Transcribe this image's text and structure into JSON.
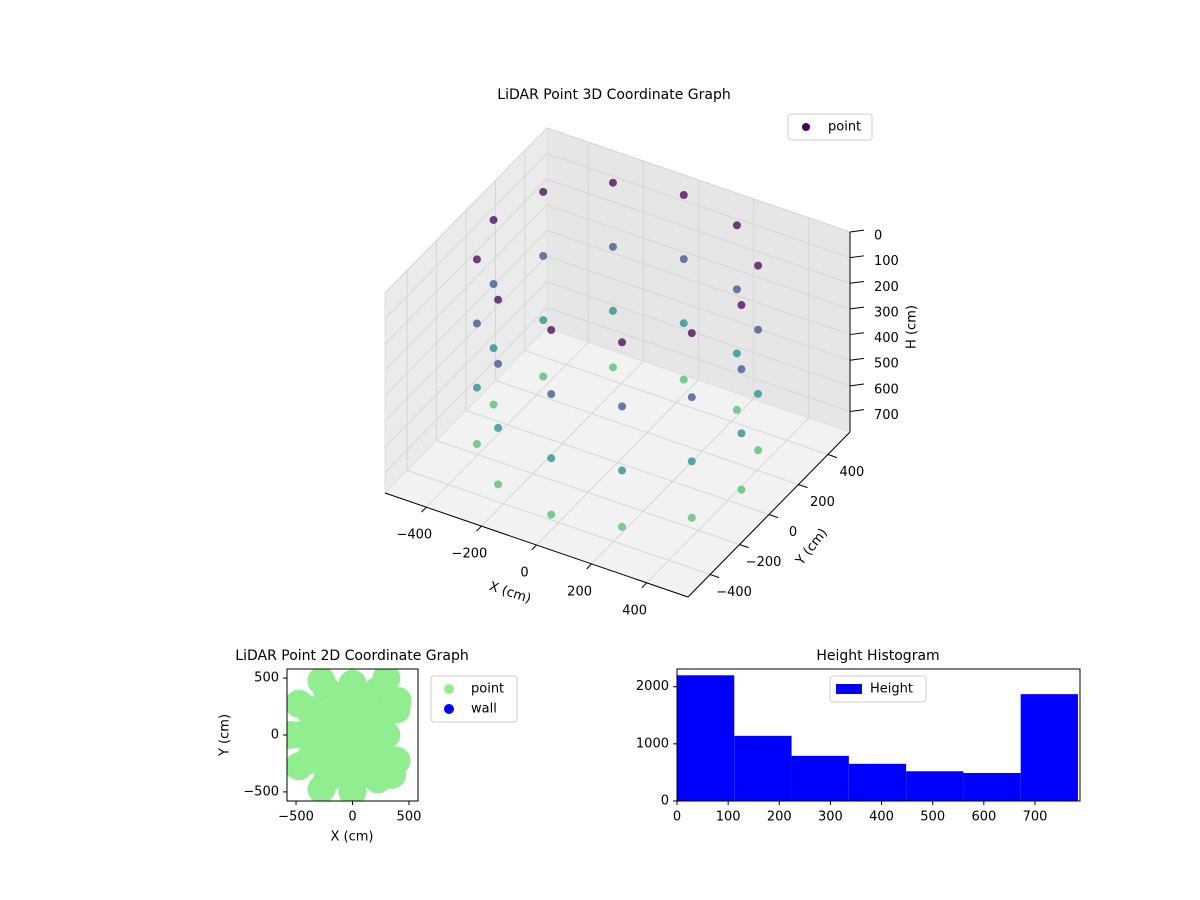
{
  "chart_data": [
    {
      "type": "scatter3d",
      "title": "LiDAR Point 3D Coordinate Graph",
      "xlabel": "X (cm)",
      "ylabel": "Y (cm)",
      "zlabel": "H (cm)",
      "xlim": [
        -550,
        550
      ],
      "ylim": [
        -550,
        550
      ],
      "zlim": [
        0,
        780
      ],
      "zinverted": true,
      "cmap": "viridis",
      "legend": "upper right",
      "xticks": [
        {
          "value": -400,
          "label": "−400"
        },
        {
          "value": -200,
          "label": "−200"
        },
        0,
        200,
        400
      ],
      "yticks": [
        {
          "value": -400,
          "label": "−400"
        },
        {
          "value": -200,
          "label": "−200"
        },
        0,
        200,
        400
      ],
      "zticks": [
        0,
        100,
        200,
        300,
        400,
        500,
        600,
        700
      ],
      "series": [
        {
          "name": "point",
          "color": "#440154",
          "x": [
            450,
            390,
            225,
            0,
            -225,
            -390,
            -450,
            -390,
            -225,
            0,
            225,
            390,
            450,
            390,
            225,
            0,
            -225,
            -390,
            -450,
            -390,
            -225,
            0,
            225,
            390,
            450,
            390,
            225,
            0,
            -225,
            -390,
            -450,
            -390,
            -225,
            0,
            225,
            390,
            450,
            390,
            225,
            0,
            -225,
            -390,
            -450,
            -390,
            -225,
            0,
            225,
            390
          ],
          "y": [
            0,
            225,
            390,
            450,
            390,
            225,
            0,
            -225,
            -390,
            -450,
            -390,
            -225,
            0,
            225,
            390,
            450,
            390,
            225,
            0,
            -225,
            -390,
            -450,
            -390,
            -225,
            0,
            225,
            390,
            450,
            390,
            225,
            0,
            -225,
            -390,
            -450,
            -390,
            -225,
            0,
            225,
            390,
            450,
            390,
            225,
            0,
            -225,
            -390,
            -450,
            -390,
            -225
          ],
          "z": [
            0,
            0,
            0,
            0,
            0,
            0,
            0,
            0,
            0,
            0,
            0,
            0,
            250,
            250,
            250,
            250,
            250,
            250,
            250,
            250,
            250,
            250,
            250,
            250,
            500,
            500,
            500,
            500,
            500,
            500,
            500,
            500,
            500,
            500,
            500,
            500,
            720,
            720,
            720,
            720,
            720,
            720,
            720,
            720,
            720,
            720,
            720,
            720
          ]
        }
      ]
    },
    {
      "type": "scatter",
      "title": "LiDAR Point 2D Coordinate Graph",
      "xlabel": "X (cm)",
      "ylabel": "Y (cm)",
      "xlim": [
        -580,
        580
      ],
      "ylim": [
        -580,
        580
      ],
      "legend": "outside right",
      "xticks": [
        {
          "value": -500,
          "label": "−500"
        },
        0,
        500
      ],
      "yticks": [
        {
          "value": -500,
          "label": "−500"
        },
        0,
        500
      ],
      "series": [
        {
          "name": "point",
          "color": "#90ee90",
          "x": [
            0,
            150,
            130,
            75,
            0,
            -75,
            -130,
            -150,
            -130,
            -75,
            0,
            75,
            130,
            300,
            260,
            150,
            0,
            -150,
            -260,
            -300,
            -260,
            -150,
            0,
            150,
            260,
            250,
            390,
            225,
            0,
            -225,
            -390,
            -450,
            -390,
            -225,
            0,
            225,
            390,
            300,
            -275,
            -475,
            -550,
            -475,
            -275,
            0,
            350,
            400
          ],
          "y": [
            0,
            0,
            75,
            130,
            150,
            130,
            75,
            0,
            -75,
            -130,
            -150,
            -130,
            -75,
            0,
            150,
            260,
            300,
            260,
            150,
            0,
            -150,
            -260,
            -300,
            -260,
            -150,
            0,
            225,
            390,
            450,
            390,
            225,
            0,
            -225,
            -390,
            -450,
            -390,
            -225,
            500,
            475,
            275,
            0,
            -275,
            -475,
            -500,
            -350,
            300
          ]
        },
        {
          "name": "wall",
          "color": "#0000ff",
          "x": [],
          "y": []
        }
      ]
    },
    {
      "type": "histogram",
      "title": "Height Histogram",
      "legend": "upper center",
      "bins": [
        0,
        112,
        224,
        336,
        448,
        560,
        672,
        784
      ],
      "xlim": [
        0,
        788
      ],
      "ylim": [
        0,
        2310
      ],
      "xticks": [
        0,
        100,
        200,
        300,
        400,
        500,
        600,
        700
      ],
      "yticks": [
        0,
        1000,
        2000
      ],
      "series": [
        {
          "name": "Height",
          "color": "#0000ff",
          "values": [
            2200,
            1140,
            790,
            650,
            520,
            490,
            1870
          ]
        }
      ]
    }
  ]
}
